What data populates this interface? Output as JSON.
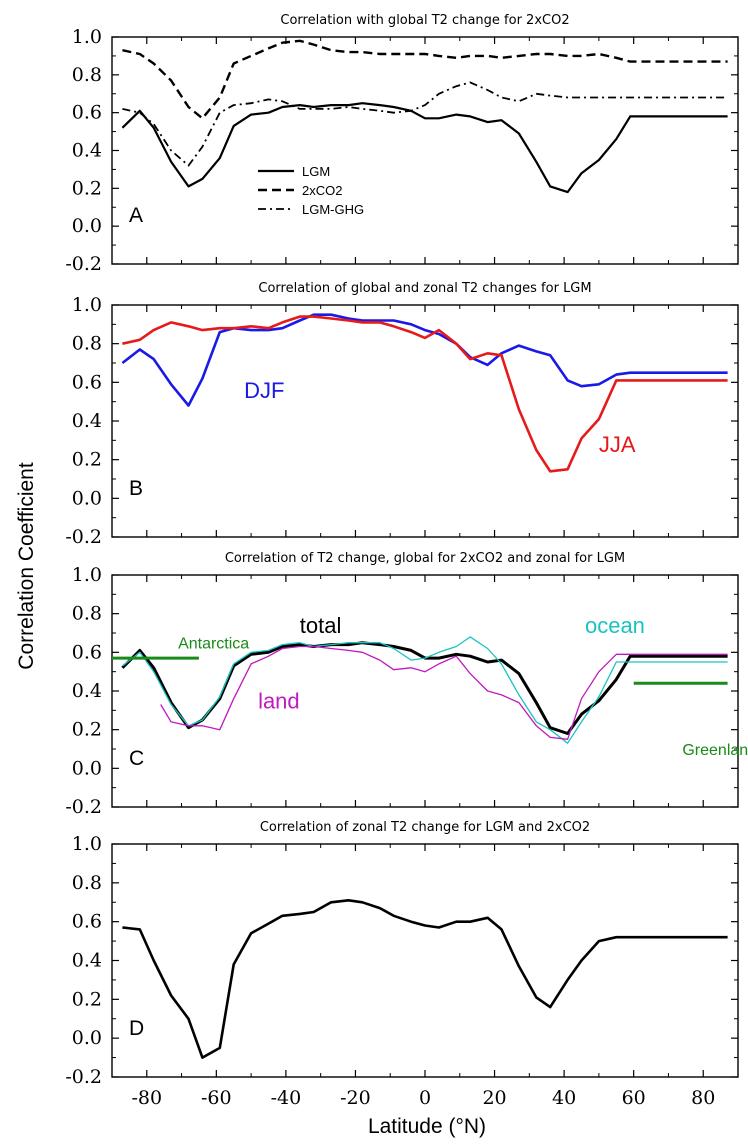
{
  "figure": {
    "ylabel": "Correlation Coefficient",
    "xlabel": "Latitude (°N)"
  },
  "chart_data": [
    {
      "type": "line",
      "panel": "A",
      "title": "Correlation with global T2 change for 2xCO2",
      "xlim": [
        -90,
        90
      ],
      "ylim": [
        -0.2,
        1.0
      ],
      "xticks": [
        -80,
        -60,
        -40,
        -20,
        0,
        20,
        40,
        60,
        80
      ],
      "yticks": [
        -0.2,
        0.0,
        0.2,
        0.4,
        0.6,
        0.8,
        1.0
      ],
      "xtick_labels": [
        "-80",
        "-60",
        "-40",
        "-20",
        "0",
        "20",
        "40",
        "60",
        "80"
      ],
      "ytick_labels": [
        "-0.2",
        "0.0",
        "0.2",
        "0.4",
        "0.6",
        "0.8",
        "1.0"
      ],
      "legend": {
        "placement": "center-left",
        "entries": [
          "LGM",
          "2xCO2",
          "LGM-GHG"
        ]
      },
      "series": [
        {
          "name": "LGM",
          "style": "solid",
          "color": "#000000",
          "width": 2.2,
          "x": [
            -87,
            -82,
            -78,
            -73,
            -68,
            -64,
            -59,
            -55,
            -50,
            -45,
            -41,
            -36,
            -32,
            -27,
            -22,
            -18,
            -13,
            -9,
            -4,
            0,
            4,
            9,
            13,
            18,
            22,
            27,
            32,
            36,
            41,
            45,
            50,
            55,
            59,
            64,
            68,
            73,
            78,
            82,
            87
          ],
          "y": [
            0.52,
            0.61,
            0.52,
            0.34,
            0.21,
            0.25,
            0.36,
            0.53,
            0.59,
            0.6,
            0.63,
            0.64,
            0.63,
            0.64,
            0.64,
            0.65,
            0.64,
            0.63,
            0.61,
            0.57,
            0.57,
            0.59,
            0.58,
            0.55,
            0.56,
            0.49,
            0.34,
            0.21,
            0.18,
            0.28,
            0.35,
            0.46,
            0.58,
            0.58,
            0.58,
            0.58,
            0.58,
            0.58,
            0.58
          ]
        },
        {
          "name": "2xCO2",
          "style": "dashed",
          "color": "#000000",
          "width": 2.4,
          "x": [
            -87,
            -82,
            -78,
            -73,
            -68,
            -64,
            -59,
            -55,
            -50,
            -45,
            -41,
            -36,
            -32,
            -27,
            -22,
            -18,
            -13,
            -9,
            -4,
            0,
            4,
            9,
            13,
            18,
            22,
            27,
            32,
            36,
            41,
            45,
            50,
            55,
            59,
            64,
            68,
            73,
            78,
            82,
            87
          ],
          "y": [
            0.93,
            0.91,
            0.86,
            0.77,
            0.63,
            0.57,
            0.68,
            0.86,
            0.9,
            0.94,
            0.97,
            0.98,
            0.96,
            0.93,
            0.92,
            0.92,
            0.91,
            0.91,
            0.91,
            0.91,
            0.9,
            0.89,
            0.9,
            0.9,
            0.89,
            0.9,
            0.91,
            0.91,
            0.9,
            0.9,
            0.91,
            0.89,
            0.87,
            0.87,
            0.87,
            0.87,
            0.87,
            0.87,
            0.87
          ]
        },
        {
          "name": "LGM-GHG",
          "style": "dashdot",
          "color": "#000000",
          "width": 1.8,
          "x": [
            -87,
            -82,
            -78,
            -73,
            -68,
            -64,
            -59,
            -55,
            -50,
            -45,
            -41,
            -36,
            -32,
            -27,
            -22,
            -18,
            -13,
            -9,
            -4,
            0,
            4,
            9,
            13,
            18,
            22,
            27,
            32,
            36,
            41,
            45,
            50,
            55,
            59,
            64,
            68,
            73,
            78,
            82,
            87
          ],
          "y": [
            0.62,
            0.6,
            0.54,
            0.4,
            0.32,
            0.42,
            0.6,
            0.64,
            0.65,
            0.67,
            0.66,
            0.62,
            0.62,
            0.62,
            0.63,
            0.62,
            0.61,
            0.6,
            0.61,
            0.64,
            0.7,
            0.74,
            0.76,
            0.72,
            0.68,
            0.66,
            0.7,
            0.69,
            0.68,
            0.68,
            0.68,
            0.68,
            0.68,
            0.68,
            0.68,
            0.68,
            0.68,
            0.68,
            0.68
          ]
        }
      ]
    },
    {
      "type": "line",
      "panel": "B",
      "title": "Correlation of global and zonal T2 changes for LGM",
      "xlim": [
        -90,
        90
      ],
      "ylim": [
        -0.2,
        1.0
      ],
      "xticks": [
        -80,
        -60,
        -40,
        -20,
        0,
        20,
        40,
        60,
        80
      ],
      "yticks": [
        -0.2,
        0.0,
        0.2,
        0.4,
        0.6,
        0.8,
        1.0
      ],
      "xtick_labels": [
        "-80",
        "-60",
        "-40",
        "-20",
        "0",
        "20",
        "40",
        "60",
        "80"
      ],
      "ytick_labels": [
        "-0.2",
        "0.0",
        "0.2",
        "0.4",
        "0.6",
        "0.8",
        "1.0"
      ],
      "annotations": [
        {
          "text": "DJF",
          "color": "#1a1ae6",
          "x": -52,
          "y": 0.52
        },
        {
          "text": "JJA",
          "color": "#e61a1a",
          "x": 50,
          "y": 0.24
        }
      ],
      "series": [
        {
          "name": "DJF",
          "style": "solid",
          "color": "#1a1ae6",
          "width": 2.6,
          "x": [
            -87,
            -82,
            -78,
            -73,
            -68,
            -64,
            -59,
            -55,
            -50,
            -45,
            -41,
            -36,
            -32,
            -27,
            -22,
            -18,
            -13,
            -9,
            -4,
            0,
            4,
            9,
            13,
            18,
            22,
            27,
            32,
            36,
            41,
            45,
            50,
            55,
            59,
            64,
            68,
            73,
            78,
            82,
            87
          ],
          "y": [
            0.7,
            0.77,
            0.72,
            0.59,
            0.48,
            0.62,
            0.86,
            0.88,
            0.87,
            0.87,
            0.88,
            0.92,
            0.95,
            0.95,
            0.93,
            0.92,
            0.92,
            0.92,
            0.9,
            0.87,
            0.85,
            0.8,
            0.73,
            0.69,
            0.75,
            0.79,
            0.76,
            0.74,
            0.61,
            0.58,
            0.59,
            0.64,
            0.65,
            0.65,
            0.65,
            0.65,
            0.65,
            0.65,
            0.65
          ]
        },
        {
          "name": "JJA",
          "style": "solid",
          "color": "#e61a1a",
          "width": 2.6,
          "x": [
            -87,
            -82,
            -78,
            -73,
            -68,
            -64,
            -59,
            -55,
            -50,
            -45,
            -41,
            -36,
            -32,
            -27,
            -22,
            -18,
            -13,
            -9,
            -4,
            0,
            4,
            9,
            13,
            18,
            22,
            27,
            32,
            36,
            41,
            45,
            50,
            55,
            59,
            64,
            68,
            73,
            78,
            82,
            87
          ],
          "y": [
            0.8,
            0.82,
            0.87,
            0.91,
            0.89,
            0.87,
            0.88,
            0.88,
            0.89,
            0.88,
            0.91,
            0.94,
            0.94,
            0.93,
            0.92,
            0.91,
            0.91,
            0.89,
            0.86,
            0.83,
            0.87,
            0.8,
            0.72,
            0.75,
            0.74,
            0.46,
            0.25,
            0.14,
            0.15,
            0.31,
            0.41,
            0.61,
            0.61,
            0.61,
            0.61,
            0.61,
            0.61,
            0.61,
            0.61
          ]
        }
      ]
    },
    {
      "type": "line",
      "panel": "C",
      "title": "Correlation of T2 change, global for 2xCO2 and zonal for LGM",
      "xlim": [
        -90,
        90
      ],
      "ylim": [
        -0.2,
        1.0
      ],
      "xticks": [
        -80,
        -60,
        -40,
        -20,
        0,
        20,
        40,
        60,
        80
      ],
      "yticks": [
        -0.2,
        0.0,
        0.2,
        0.4,
        0.6,
        0.8,
        1.0
      ],
      "xtick_labels": [
        "-80",
        "-60",
        "-40",
        "-20",
        "0",
        "20",
        "40",
        "60",
        "80"
      ],
      "ytick_labels": [
        "-0.2",
        "0.0",
        "0.2",
        "0.4",
        "0.6",
        "0.8",
        "1.0"
      ],
      "annotations": [
        {
          "text": "total",
          "color": "#000000",
          "x": -36,
          "y": 0.7
        },
        {
          "text": "ocean",
          "color": "#19c3c3",
          "x": 46,
          "y": 0.7
        },
        {
          "text": "land",
          "color": "#c019c0",
          "x": -48,
          "y": 0.31
        },
        {
          "text": "Antarctica",
          "color": "#1a8a1a",
          "x": -71,
          "y": 0.62
        },
        {
          "text": "Greenland",
          "color": "#1a8a1a",
          "x": 74,
          "y": 0.07
        }
      ],
      "series": [
        {
          "name": "total",
          "style": "solid",
          "color": "#000000",
          "width": 3.0,
          "x": [
            -87,
            -82,
            -78,
            -73,
            -68,
            -64,
            -59,
            -55,
            -50,
            -45,
            -41,
            -36,
            -32,
            -27,
            -22,
            -18,
            -13,
            -9,
            -4,
            0,
            4,
            9,
            13,
            18,
            22,
            27,
            32,
            36,
            41,
            45,
            50,
            55,
            59,
            64,
            68,
            73,
            78,
            82,
            87
          ],
          "y": [
            0.52,
            0.61,
            0.52,
            0.34,
            0.21,
            0.25,
            0.36,
            0.53,
            0.59,
            0.6,
            0.63,
            0.64,
            0.63,
            0.64,
            0.64,
            0.65,
            0.64,
            0.63,
            0.61,
            0.57,
            0.57,
            0.59,
            0.58,
            0.55,
            0.56,
            0.49,
            0.34,
            0.21,
            0.18,
            0.28,
            0.35,
            0.46,
            0.58,
            0.58,
            0.58,
            0.58,
            0.58,
            0.58,
            0.58
          ]
        },
        {
          "name": "ocean",
          "style": "solid",
          "color": "#19c3c3",
          "width": 1.3,
          "x": [
            -87,
            -82,
            -78,
            -73,
            -68,
            -64,
            -59,
            -55,
            -50,
            -45,
            -41,
            -36,
            -32,
            -27,
            -22,
            -18,
            -13,
            -9,
            -4,
            0,
            4,
            9,
            13,
            18,
            22,
            27,
            32,
            36,
            41,
            45,
            50,
            55,
            59,
            64,
            68,
            73,
            78,
            82,
            87
          ],
          "y": [
            0.53,
            0.6,
            0.5,
            0.33,
            0.22,
            0.25,
            0.37,
            0.54,
            0.6,
            0.61,
            0.64,
            0.65,
            0.63,
            0.64,
            0.65,
            0.65,
            0.65,
            0.62,
            0.56,
            0.57,
            0.6,
            0.63,
            0.68,
            0.62,
            0.54,
            0.38,
            0.24,
            0.2,
            0.13,
            0.24,
            0.37,
            0.55,
            0.55,
            0.55,
            0.55,
            0.55,
            0.55,
            0.55,
            0.55
          ]
        },
        {
          "name": "land",
          "style": "solid",
          "color": "#c019c0",
          "width": 1.3,
          "x": [
            -76,
            -73,
            -68,
            -64,
            -59,
            -55,
            -50,
            -45,
            -41,
            -36,
            -32,
            -27,
            -22,
            -18,
            -13,
            -9,
            -4,
            0,
            4,
            9,
            13,
            18,
            22,
            27,
            32,
            36,
            41,
            45,
            50,
            55,
            59,
            64,
            68,
            73,
            78,
            82,
            87
          ],
          "y": [
            0.33,
            0.24,
            0.22,
            0.22,
            0.2,
            0.36,
            0.54,
            0.58,
            0.62,
            0.63,
            0.63,
            0.62,
            0.61,
            0.6,
            0.56,
            0.51,
            0.52,
            0.5,
            0.54,
            0.58,
            0.49,
            0.4,
            0.38,
            0.34,
            0.22,
            0.16,
            0.15,
            0.36,
            0.5,
            0.59,
            0.59,
            0.59,
            0.59,
            0.59,
            0.59,
            0.59,
            0.59
          ]
        },
        {
          "name": "Antarctica",
          "style": "solid",
          "color": "#1a8a1a",
          "width": 3.0,
          "x": [
            -90,
            -65
          ],
          "y": [
            0.57,
            0.57
          ]
        },
        {
          "name": "Greenland",
          "style": "solid",
          "color": "#1a8a1a",
          "width": 3.0,
          "x": [
            60,
            87
          ],
          "y": [
            0.44,
            0.44
          ]
        }
      ]
    },
    {
      "type": "line",
      "panel": "D",
      "title": "Correlation of zonal T2 change for LGM and 2xCO2",
      "xlim": [
        -90,
        90
      ],
      "ylim": [
        -0.2,
        1.0
      ],
      "xticks": [
        -80,
        -60,
        -40,
        -20,
        0,
        20,
        40,
        60,
        80
      ],
      "yticks": [
        -0.2,
        0.0,
        0.2,
        0.4,
        0.6,
        0.8,
        1.0
      ],
      "xtick_labels": [
        "-80",
        "-60",
        "-40",
        "-20",
        "0",
        "20",
        "40",
        "60",
        "80"
      ],
      "ytick_labels": [
        "-0.2",
        "0.0",
        "0.2",
        "0.4",
        "0.6",
        "0.8",
        "1.0"
      ],
      "series": [
        {
          "name": "",
          "style": "solid",
          "color": "#000000",
          "width": 2.6,
          "x": [
            -87,
            -82,
            -78,
            -73,
            -68,
            -64,
            -59,
            -55,
            -50,
            -45,
            -41,
            -36,
            -32,
            -27,
            -22,
            -18,
            -13,
            -9,
            -4,
            0,
            4,
            9,
            13,
            18,
            22,
            27,
            32,
            36,
            41,
            45,
            50,
            55,
            59,
            64,
            68,
            73,
            78,
            82,
            87
          ],
          "y": [
            0.57,
            0.56,
            0.4,
            0.22,
            0.1,
            -0.1,
            -0.05,
            0.38,
            0.54,
            0.59,
            0.63,
            0.64,
            0.65,
            0.7,
            0.71,
            0.7,
            0.67,
            0.63,
            0.6,
            0.58,
            0.57,
            0.6,
            0.6,
            0.62,
            0.56,
            0.37,
            0.21,
            0.16,
            0.3,
            0.4,
            0.5,
            0.52,
            0.52,
            0.52,
            0.52,
            0.52,
            0.52,
            0.52,
            0.52
          ]
        }
      ]
    }
  ]
}
